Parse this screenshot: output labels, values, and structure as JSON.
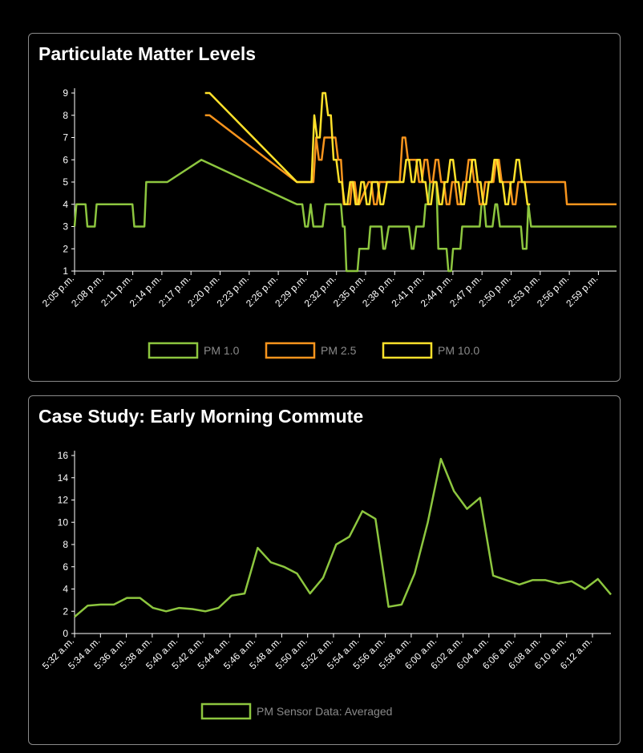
{
  "chart_data": [
    {
      "type": "line",
      "title": "Particulate Matter Levels",
      "ylim": [
        1,
        9
      ],
      "yticks": [
        1,
        2,
        3,
        4,
        5,
        6,
        7,
        8,
        9
      ],
      "xlim": [
        0,
        59
      ],
      "xtick_labels": [
        "2:05 p.m.",
        "2:08 p.m.",
        "2:11 p.m.",
        "2:14 p.m.",
        "2:17 p.m.",
        "2:20 p.m.",
        "2:23 p.m.",
        "2:26 p.m.",
        "2:29 p.m.",
        "2:32 p.m.",
        "2:35 p.m.",
        "2:38 p.m.",
        "2:41 p.m.",
        "2:44 p.m.",
        "2:47 p.m.",
        "2:50 p.m.",
        "2:53 p.m.",
        "2:56 p.m.",
        "2:59 p.m."
      ],
      "legend_position": "bottom",
      "series": [
        {
          "name": "PM 1.0",
          "color": "#8dc63f",
          "x": [
            0,
            0.2,
            1.2,
            1.4,
            2.2,
            2.4,
            6.3,
            6.5,
            7.6,
            7.8,
            10.1,
            13.8,
            24.2,
            24.8,
            25.1,
            25.4,
            25.7,
            26.0,
            27.0,
            27.3,
            29.0,
            29.2,
            29.4,
            29.6,
            30.8,
            31.0,
            32.0,
            32.2,
            33.4,
            33.6,
            33.8,
            34.2,
            34.4,
            36.2,
            36.4,
            36.7,
            36.9,
            37.2,
            37.4,
            37.8,
            38.0,
            38.2,
            38.5,
            38.7,
            39.4,
            39.6,
            40.5,
            40.7,
            41.0,
            41.2,
            42.0,
            42.2,
            42.4,
            42.6,
            44.1,
            44.3,
            44.6,
            44.8,
            45.5,
            45.8,
            46.0,
            46.3,
            48.6,
            48.8,
            49.2,
            49.4,
            49.7,
            59.0
          ],
          "y": [
            3,
            4,
            4,
            3,
            3,
            4,
            4,
            3,
            3,
            5,
            5,
            6,
            4,
            4,
            3,
            3,
            4,
            3,
            3,
            4,
            4,
            3,
            3,
            1,
            1,
            2,
            2,
            3,
            3,
            2,
            2,
            3,
            3,
            3,
            3,
            2,
            2,
            3,
            3,
            3,
            3,
            4,
            4,
            5,
            5,
            2,
            2,
            1,
            1,
            2,
            2,
            3,
            3,
            3,
            3,
            4,
            4,
            3,
            3,
            4,
            4,
            3,
            3,
            2,
            2,
            4,
            3,
            3
          ]
        },
        {
          "name": "PM 2.5",
          "color": "#f7941d",
          "x": [
            14.2,
            14.7,
            24.2,
            26.0,
            26.3,
            26.6,
            26.9,
            27.2,
            28.4,
            28.7,
            29.0,
            29.3,
            30.0,
            30.2,
            30.5,
            30.8,
            31.0,
            32.0,
            32.3,
            32.6,
            32.9,
            33.2,
            33.5,
            33.8,
            35.4,
            35.7,
            36.0,
            36.3,
            36.6,
            36.9,
            37.2,
            37.5,
            37.8,
            38.1,
            38.4,
            38.7,
            39.0,
            39.3,
            39.6,
            39.9,
            40.2,
            40.5,
            40.8,
            41.1,
            41.4,
            41.7,
            42.0,
            42.3,
            42.6,
            42.9,
            43.2,
            43.5,
            43.8,
            44.1,
            44.4,
            44.7,
            45.0,
            45.3,
            45.6,
            45.9,
            46.2,
            46.5,
            46.8,
            47.1,
            47.4,
            47.7,
            48.0,
            48.3,
            48.6,
            48.9,
            49.5,
            49.8,
            53.4,
            53.6,
            59.0
          ],
          "y": [
            8,
            8,
            5,
            5,
            7,
            6,
            6,
            7,
            7,
            6,
            6,
            4,
            4,
            5,
            5,
            4,
            4,
            5,
            5,
            4,
            4,
            5,
            5,
            5,
            5,
            7,
            7,
            6,
            6,
            6,
            6,
            5,
            5,
            6,
            6,
            5,
            5,
            6,
            6,
            5,
            5,
            4,
            4,
            5,
            5,
            4,
            4,
            5,
            5,
            6,
            6,
            5,
            5,
            4,
            4,
            5,
            5,
            5,
            5,
            6,
            6,
            5,
            5,
            5,
            5,
            4,
            4,
            5,
            5,
            5,
            5,
            5,
            5,
            4,
            4
          ]
        },
        {
          "name": "PM 10.0",
          "color": "#ffe12b",
          "x": [
            14.2,
            14.7,
            24.2,
            25.8,
            26.1,
            26.4,
            26.7,
            27.0,
            27.3,
            27.6,
            27.9,
            28.2,
            28.5,
            28.8,
            29.1,
            29.4,
            29.7,
            30.0,
            30.3,
            30.6,
            30.9,
            31.2,
            31.5,
            31.8,
            32.1,
            32.4,
            32.7,
            33.0,
            33.3,
            33.6,
            34.0,
            35.8,
            36.1,
            36.4,
            36.7,
            37.0,
            37.3,
            37.6,
            37.9,
            38.2,
            38.5,
            38.8,
            39.1,
            39.4,
            39.7,
            40.0,
            40.3,
            40.6,
            40.9,
            41.2,
            41.5,
            41.8,
            42.1,
            42.4,
            42.7,
            43.0,
            43.3,
            43.6,
            43.9,
            44.2,
            44.5,
            44.8,
            45.1,
            45.4,
            45.7,
            46.0,
            46.3,
            46.6,
            46.9,
            47.2,
            47.5,
            47.8,
            48.1,
            48.4,
            48.7,
            49.0,
            49.3,
            49.6
          ],
          "y": [
            9,
            9,
            5,
            5,
            8,
            7,
            7,
            9,
            9,
            8,
            8,
            6,
            6,
            5,
            5,
            4,
            4,
            5,
            5,
            4,
            4,
            5,
            5,
            4,
            4,
            5,
            5,
            5,
            4,
            4,
            5,
            5,
            6,
            6,
            5,
            5,
            6,
            6,
            5,
            5,
            4,
            4,
            5,
            5,
            4,
            4,
            5,
            5,
            6,
            6,
            5,
            5,
            4,
            4,
            5,
            5,
            6,
            6,
            5,
            5,
            4,
            4,
            5,
            5,
            6,
            6,
            5,
            5,
            4,
            4,
            5,
            5,
            6,
            6,
            5,
            5,
            4,
            4
          ]
        }
      ]
    },
    {
      "type": "line",
      "title": "Case Study: Early Morning Commute",
      "ylim": [
        0,
        16
      ],
      "yticks": [
        0,
        2,
        4,
        6,
        8,
        10,
        12,
        14,
        16
      ],
      "xtick_labels": [
        "5:32 a.m.",
        "5:34 a.m.",
        "5:36 a.m.",
        "5:38 a.m.",
        "5:40 a.m.",
        "5:42 a.m.",
        "5:44 a.m.",
        "5:46 a.m.",
        "5:48 a.m.",
        "5:50 a.m.",
        "5:52 a.m.",
        "5:54 a.m.",
        "5:56 a.m.",
        "5:58 a.m.",
        "6:00 a.m.",
        "6:02 a.m.",
        "6:04 a.m.",
        "6:06 a.m.",
        "6:08 a.m.",
        "6:10 a.m.",
        "6:12 a.m."
      ],
      "legend_position": "bottom",
      "series": [
        {
          "name": "PM Sensor Data: Averaged",
          "color": "#8dc63f",
          "values": [
            1.5,
            2.5,
            2.6,
            2.6,
            3.2,
            3.2,
            2.3,
            2.0,
            2.3,
            2.2,
            2.0,
            2.3,
            3.4,
            3.6,
            7.7,
            6.4,
            6.0,
            5.4,
            3.6,
            5.0,
            8.0,
            8.7,
            11.0,
            10.3,
            2.4,
            2.6,
            5.4,
            10.0,
            15.7,
            12.8,
            11.2,
            12.2,
            5.2,
            4.8,
            4.4,
            4.8,
            4.8,
            4.5,
            4.7,
            4.0,
            4.9,
            3.5
          ]
        }
      ]
    }
  ]
}
